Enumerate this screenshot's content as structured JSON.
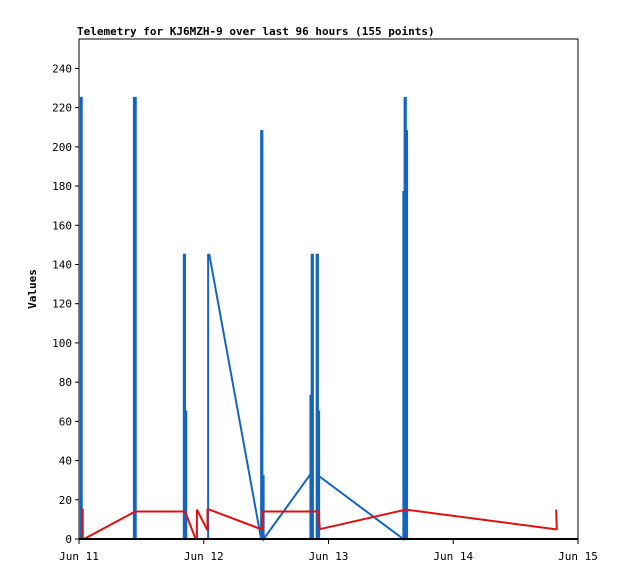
{
  "chart_data": {
    "type": "line",
    "title": "Telemetry for KJ6MZH-9 over last 96 hours (155 points)",
    "xlabel": "",
    "ylabel": "Values",
    "x_tick_labels": [
      "Jun 11",
      "Jun 12",
      "Jun 13",
      "Jun 14",
      "Jun 15"
    ],
    "xlim": [
      0,
      4
    ],
    "ylim": [
      0,
      255
    ],
    "y_ticks": [
      0,
      20,
      40,
      60,
      80,
      100,
      120,
      140,
      160,
      180,
      200,
      220,
      240
    ],
    "grid": false,
    "colors": {
      "blue": "#1565c0",
      "red": "#e01010",
      "black": "#000000",
      "axis": "#000000"
    },
    "series": [
      {
        "color": "#1565c0",
        "points": [
          [
            0.015,
            0
          ],
          [
            0.015,
            225
          ],
          [
            0.022,
            225
          ],
          [
            0.022,
            0
          ],
          [
            0.44,
            0
          ],
          [
            0.44,
            225
          ],
          [
            0.455,
            225
          ],
          [
            0.455,
            0
          ],
          [
            0.84,
            0
          ],
          [
            0.84,
            145
          ],
          [
            0.85,
            145
          ],
          [
            0.85,
            0
          ],
          [
            0.855,
            0
          ],
          [
            0.855,
            65
          ],
          [
            0.86,
            65
          ],
          [
            0.86,
            0
          ],
          [
            1.035,
            0
          ],
          [
            1.035,
            145
          ],
          [
            1.045,
            145
          ],
          [
            1.46,
            0
          ],
          [
            1.46,
            208
          ],
          [
            1.47,
            208
          ],
          [
            1.47,
            0
          ],
          [
            1.475,
            0
          ],
          [
            1.475,
            32
          ],
          [
            1.48,
            32
          ],
          [
            1.48,
            0
          ],
          [
            1.855,
            33
          ],
          [
            1.855,
            0
          ],
          [
            1.855,
            73
          ],
          [
            1.86,
            73
          ],
          [
            1.86,
            0
          ],
          [
            1.865,
            0
          ],
          [
            1.865,
            145
          ],
          [
            1.875,
            145
          ],
          [
            1.875,
            0
          ],
          [
            1.905,
            0
          ],
          [
            1.905,
            145
          ],
          [
            1.915,
            145
          ],
          [
            1.915,
            0
          ],
          [
            1.92,
            0
          ],
          [
            1.92,
            65
          ],
          [
            1.925,
            65
          ],
          [
            1.925,
            0
          ],
          [
            1.925,
            32
          ],
          [
            2.6,
            0
          ],
          [
            2.6,
            177
          ],
          [
            2.61,
            177
          ],
          [
            2.61,
            0
          ],
          [
            2.61,
            0
          ],
          [
            2.61,
            225
          ],
          [
            2.62,
            225
          ],
          [
            2.62,
            0
          ],
          [
            2.625,
            0
          ],
          [
            2.625,
            208
          ],
          [
            2.63,
            208
          ],
          [
            2.63,
            0
          ]
        ]
      },
      {
        "color": "#e01010",
        "points": [
          [
            0.015,
            15
          ],
          [
            0.03,
            15
          ],
          [
            0.03,
            0
          ],
          [
            0.04,
            0
          ],
          [
            0.45,
            14
          ],
          [
            0.85,
            14
          ],
          [
            0.935,
            0
          ],
          [
            0.945,
            0
          ],
          [
            0.945,
            15
          ],
          [
            1.025,
            5
          ],
          [
            1.03,
            5
          ],
          [
            1.03,
            15
          ],
          [
            1.045,
            15
          ],
          [
            1.46,
            5
          ],
          [
            1.47,
            5
          ],
          [
            1.475,
            14
          ],
          [
            1.855,
            14
          ],
          [
            1.855,
            14
          ],
          [
            1.92,
            14
          ],
          [
            1.93,
            5
          ],
          [
            2.62,
            15
          ],
          [
            3.82,
            5
          ],
          [
            3.83,
            5
          ],
          [
            3.825,
            15
          ],
          [
            3.83,
            5
          ]
        ]
      },
      {
        "color": "#000000",
        "points": [
          [
            0.0,
            0
          ],
          [
            4.0,
            0
          ]
        ]
      }
    ]
  }
}
